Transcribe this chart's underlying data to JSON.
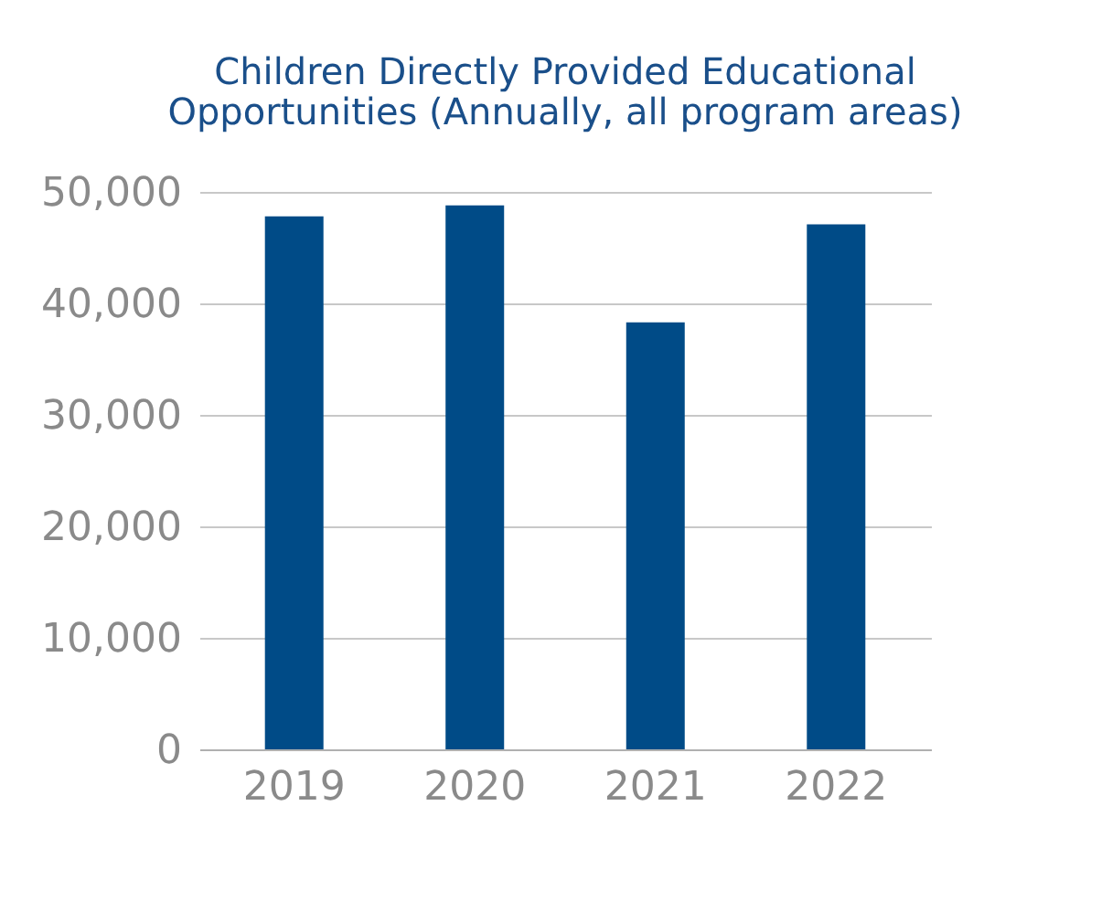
{
  "chart_data": {
    "type": "bar",
    "title": [
      "Children Directly Provided Educational",
      "Opportunities (Annually, all program areas)"
    ],
    "categories": [
      "2019",
      "2020",
      "2021",
      "2022"
    ],
    "values": [
      47800,
      48800,
      38300,
      47100
    ],
    "color": "#004b87",
    "ylim": [
      0,
      50000
    ],
    "yticks": [
      0,
      {
        "value": 10000,
        "label": "10,000"
      },
      {
        "value": 20000,
        "label": "20,000"
      },
      {
        "value": 30000,
        "label": "30,000"
      },
      {
        "value": 40000,
        "label": "40,000"
      },
      {
        "value": 50000,
        "label": "50,000"
      }
    ],
    "grid": "y"
  }
}
